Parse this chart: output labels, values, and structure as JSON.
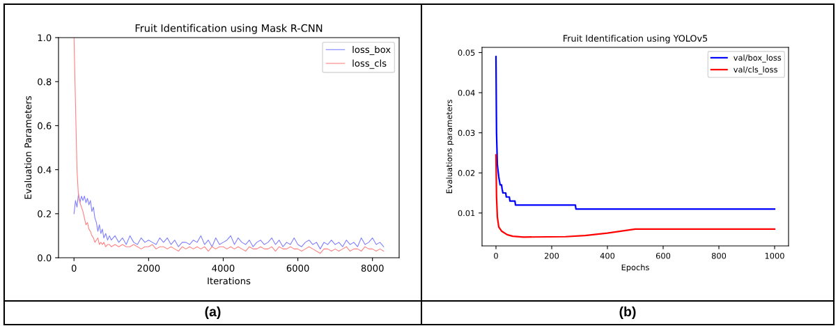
{
  "chart_data": [
    {
      "type": "line",
      "title": "Fruit Identification using Mask R-CNN",
      "xlabel": "Iterations",
      "ylabel": "Evaluation Parameters",
      "xlim": [
        -415,
        8715
      ],
      "xticks": [
        0,
        2000,
        4000,
        6000,
        8000
      ],
      "ylim": [
        0,
        1.0
      ],
      "yticks": [
        {
          "value": 0,
          "label": "0.0"
        },
        0.2,
        0.4,
        0.6,
        0.8,
        {
          "value": 1.0,
          "label": "1.0"
        }
      ],
      "grid": false,
      "legend": "top right",
      "annotations": [
        "(a)"
      ],
      "x": [
        0,
        40,
        80,
        120,
        160,
        200,
        240,
        280,
        320,
        360,
        400,
        440,
        480,
        520,
        560,
        600,
        640,
        680,
        720,
        760,
        800,
        850,
        900,
        950,
        1000,
        1100,
        1200,
        1300,
        1400,
        1500,
        1600,
        1700,
        1800,
        1900,
        2000,
        2100,
        2200,
        2300,
        2400,
        2500,
        2600,
        2700,
        2800,
        2900,
        3000,
        3100,
        3200,
        3300,
        3400,
        3500,
        3600,
        3700,
        3800,
        3900,
        4000,
        4100,
        4200,
        4300,
        4400,
        4500,
        4600,
        4700,
        4800,
        4900,
        5000,
        5100,
        5200,
        5300,
        5400,
        5500,
        5600,
        5700,
        5800,
        5900,
        6000,
        6100,
        6200,
        6300,
        6400,
        6500,
        6600,
        6700,
        6800,
        6900,
        7000,
        7100,
        7200,
        7300,
        7400,
        7500,
        7600,
        7700,
        7800,
        7900,
        8000,
        8100,
        8200,
        8300
      ],
      "series": [
        {
          "name": "loss_box",
          "color": "#8080ff",
          "values": [
            0.2,
            0.26,
            0.23,
            0.29,
            0.25,
            0.28,
            0.26,
            0.28,
            0.25,
            0.27,
            0.24,
            0.26,
            0.21,
            0.23,
            0.18,
            0.16,
            0.12,
            0.15,
            0.11,
            0.13,
            0.09,
            0.11,
            0.08,
            0.1,
            0.08,
            0.1,
            0.07,
            0.09,
            0.06,
            0.1,
            0.07,
            0.06,
            0.09,
            0.07,
            0.08,
            0.07,
            0.06,
            0.09,
            0.07,
            0.09,
            0.06,
            0.08,
            0.05,
            0.07,
            0.07,
            0.06,
            0.08,
            0.07,
            0.1,
            0.06,
            0.08,
            0.05,
            0.09,
            0.06,
            0.07,
            0.08,
            0.1,
            0.06,
            0.09,
            0.07,
            0.06,
            0.08,
            0.05,
            0.07,
            0.08,
            0.06,
            0.07,
            0.09,
            0.06,
            0.08,
            0.05,
            0.07,
            0.06,
            0.09,
            0.06,
            0.05,
            0.07,
            0.08,
            0.06,
            0.07,
            0.04,
            0.07,
            0.06,
            0.08,
            0.06,
            0.07,
            0.05,
            0.08,
            0.06,
            0.07,
            0.05,
            0.09,
            0.06,
            0.07,
            0.09,
            0.06,
            0.07,
            0.05
          ]
        },
        {
          "name": "loss_cls",
          "color": "#ff8080",
          "values": [
            1.0,
            0.7,
            0.4,
            0.28,
            0.25,
            0.23,
            0.21,
            0.18,
            0.15,
            0.16,
            0.13,
            0.12,
            0.1,
            0.09,
            0.07,
            0.08,
            0.09,
            0.06,
            0.07,
            0.06,
            0.07,
            0.05,
            0.06,
            0.06,
            0.05,
            0.06,
            0.05,
            0.06,
            0.05,
            0.05,
            0.06,
            0.05,
            0.04,
            0.05,
            0.05,
            0.06,
            0.04,
            0.05,
            0.05,
            0.04,
            0.05,
            0.04,
            0.03,
            0.05,
            0.04,
            0.05,
            0.04,
            0.05,
            0.04,
            0.05,
            0.03,
            0.05,
            0.04,
            0.05,
            0.05,
            0.04,
            0.05,
            0.04,
            0.05,
            0.04,
            0.03,
            0.05,
            0.04,
            0.04,
            0.05,
            0.04,
            0.04,
            0.05,
            0.03,
            0.05,
            0.04,
            0.04,
            0.05,
            0.04,
            0.04,
            0.03,
            0.04,
            0.05,
            0.04,
            0.03,
            0.02,
            0.04,
            0.04,
            0.03,
            0.04,
            0.03,
            0.04,
            0.05,
            0.03,
            0.04,
            0.04,
            0.03,
            0.05,
            0.04,
            0.04,
            0.03,
            0.04,
            0.03
          ]
        }
      ]
    },
    {
      "type": "line",
      "title": "Fruit Identification using YOLOv5",
      "xlabel": "Epochs",
      "ylabel": "Evaluations parameters",
      "xlim": [
        -50,
        1050
      ],
      "xticks": [
        0,
        200,
        400,
        600,
        800,
        1000
      ],
      "ylim": [
        0.0018,
        0.0513
      ],
      "yticks": [
        0.01,
        0.02,
        0.03,
        0.04,
        0.05
      ],
      "grid": false,
      "legend": "top right",
      "annotations": [
        "(b)"
      ],
      "series": [
        {
          "name": "val/box_loss",
          "color": "#0000ff",
          "x": [
            0,
            2,
            5,
            10,
            15,
            20,
            22,
            25,
            35,
            37,
            48,
            50,
            68,
            70,
            285,
            287,
            1000
          ],
          "values": [
            0.049,
            0.03,
            0.022,
            0.019,
            0.017,
            0.017,
            0.016,
            0.015,
            0.015,
            0.014,
            0.014,
            0.013,
            0.013,
            0.012,
            0.012,
            0.011,
            0.011
          ]
        },
        {
          "name": "val/cls_loss",
          "color": "#ff0000",
          "x": [
            0,
            2,
            5,
            10,
            20,
            40,
            60,
            100,
            250,
            320,
            400,
            500,
            1000
          ],
          "values": [
            0.0245,
            0.014,
            0.009,
            0.0065,
            0.0055,
            0.0046,
            0.0042,
            0.004,
            0.0041,
            0.0044,
            0.005,
            0.006,
            0.006
          ]
        }
      ]
    }
  ]
}
